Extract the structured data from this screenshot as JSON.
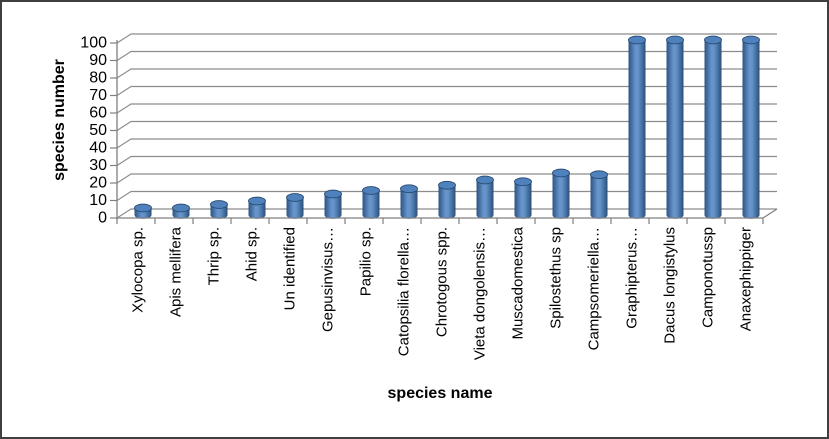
{
  "figure": {
    "background": "#ffffff",
    "border_color": "#3f3f3f"
  },
  "chart_data": {
    "type": "bar",
    "subtype": "3d-cylinder",
    "title": "",
    "xlabel": "species name",
    "ylabel": "species number",
    "ylim": [
      0,
      100
    ],
    "ytick_step": 10,
    "ytick_labels": [
      "0",
      "10",
      "20",
      "30",
      "40",
      "50",
      "60",
      "70",
      "80",
      "90",
      "100"
    ],
    "grid": true,
    "legend": false,
    "categories": [
      "Xylocopa sp.",
      "Apis mellifera",
      "Thrip sp.",
      "Ahid sp.",
      "Un identified",
      "Gepusinvisus…",
      "Papilio sp.",
      "Catopsilia florella…",
      "Chrotogous spp.",
      "Vieta dongolensis…",
      "Muscadomestica",
      "Spilostethus sp",
      "Campsomeriella…",
      "Graphipterus…",
      "Dacus longistylus",
      "Camponotussp",
      "Anaxephippiger"
    ],
    "values": [
      4,
      4,
      6,
      8,
      10,
      12,
      14,
      15,
      17,
      20,
      19,
      24,
      23,
      100,
      100,
      100,
      100
    ],
    "colors": {
      "bar_fill": "#4f81bd",
      "bar_light": "#6a95cb",
      "bar_dark": "#2f5480",
      "bar_edge": "#26486f",
      "gridline": "#8c8c8c",
      "axis": "#808080",
      "text": "#000000"
    }
  }
}
